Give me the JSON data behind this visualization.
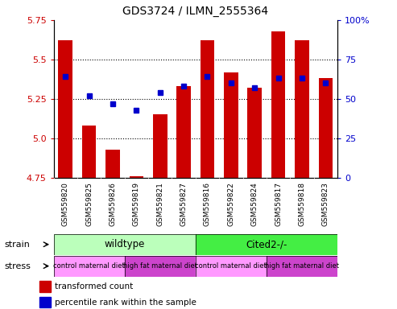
{
  "title": "GDS3724 / ILMN_2555364",
  "samples": [
    "GSM559820",
    "GSM559825",
    "GSM559826",
    "GSM559819",
    "GSM559821",
    "GSM559827",
    "GSM559816",
    "GSM559822",
    "GSM559824",
    "GSM559817",
    "GSM559818",
    "GSM559823"
  ],
  "red_values": [
    5.62,
    5.08,
    4.93,
    4.76,
    5.15,
    5.33,
    5.62,
    5.42,
    5.32,
    5.68,
    5.62,
    5.38
  ],
  "blue_values": [
    5.39,
    5.27,
    5.22,
    5.18,
    5.29,
    5.33,
    5.39,
    5.35,
    5.32,
    5.38,
    5.38,
    5.35
  ],
  "ylim_left": [
    4.75,
    5.75
  ],
  "ylim_right": [
    0,
    100
  ],
  "yticks_left": [
    4.75,
    5.0,
    5.25,
    5.5,
    5.75
  ],
  "yticks_right": [
    0,
    25,
    50,
    75,
    100
  ],
  "ytick_labels_right": [
    "0",
    "25",
    "50",
    "75",
    "100%"
  ],
  "bar_color": "#cc0000",
  "dot_color": "#0000cc",
  "plot_bg": "#ffffff",
  "strain_wildtype_label": "wildtype",
  "strain_cited_label": "Cited2-/-",
  "strain_wildtype_color": "#bbffbb",
  "strain_cited_color": "#44ee44",
  "stress_control_color": "#ff99ff",
  "stress_hf_color": "#cc44cc",
  "stress_labels": [
    "control maternal diet",
    "high fat maternal diet",
    "control maternal diet",
    "high fat maternal diet"
  ],
  "strain_row_label": "strain",
  "stress_row_label": "stress",
  "legend_red": "transformed count",
  "legend_blue": "percentile rank within the sample",
  "tick_label_color_left": "#cc0000",
  "tick_label_color_right": "#0000cc",
  "title_fontsize": 10,
  "sample_label_bg": "#cccccc",
  "grid_yticks": [
    5.0,
    5.25,
    5.5
  ]
}
